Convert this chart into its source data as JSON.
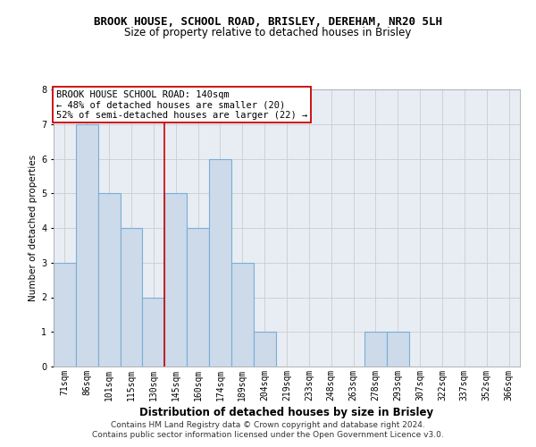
{
  "title": "BROOK HOUSE, SCHOOL ROAD, BRISLEY, DEREHAM, NR20 5LH",
  "subtitle": "Size of property relative to detached houses in Brisley",
  "xlabel": "Distribution of detached houses by size in Brisley",
  "ylabel": "Number of detached properties",
  "categories": [
    "71sqm",
    "86sqm",
    "101sqm",
    "115sqm",
    "130sqm",
    "145sqm",
    "160sqm",
    "174sqm",
    "189sqm",
    "204sqm",
    "219sqm",
    "233sqm",
    "248sqm",
    "263sqm",
    "278sqm",
    "293sqm",
    "307sqm",
    "322sqm",
    "337sqm",
    "352sqm",
    "366sqm"
  ],
  "values": [
    3,
    7,
    5,
    4,
    2,
    5,
    4,
    6,
    3,
    1,
    0,
    0,
    0,
    0,
    1,
    1,
    0,
    0,
    0,
    0,
    0
  ],
  "bar_color": "#ccdaea",
  "bar_edge_color": "#7aaed6",
  "bar_linewidth": 0.8,
  "vline_x_index": 4.5,
  "vline_color": "#cc0000",
  "annotation_title": "BROOK HOUSE SCHOOL ROAD: 140sqm",
  "annotation_line1": "← 48% of detached houses are smaller (20)",
  "annotation_line2": "52% of semi-detached houses are larger (22) →",
  "annotation_box_color": "#ffffff",
  "annotation_box_edge": "#cc0000",
  "ylim": [
    0,
    8
  ],
  "yticks": [
    0,
    1,
    2,
    3,
    4,
    5,
    6,
    7,
    8
  ],
  "grid_color": "#cccccc",
  "bg_color": "#e8edf4",
  "footer1": "Contains HM Land Registry data © Crown copyright and database right 2024.",
  "footer2": "Contains public sector information licensed under the Open Government Licence v3.0.",
  "title_fontsize": 9,
  "subtitle_fontsize": 8.5,
  "xlabel_fontsize": 8.5,
  "ylabel_fontsize": 7.5,
  "tick_fontsize": 7,
  "annotation_fontsize": 7.5,
  "footer_fontsize": 6.5
}
